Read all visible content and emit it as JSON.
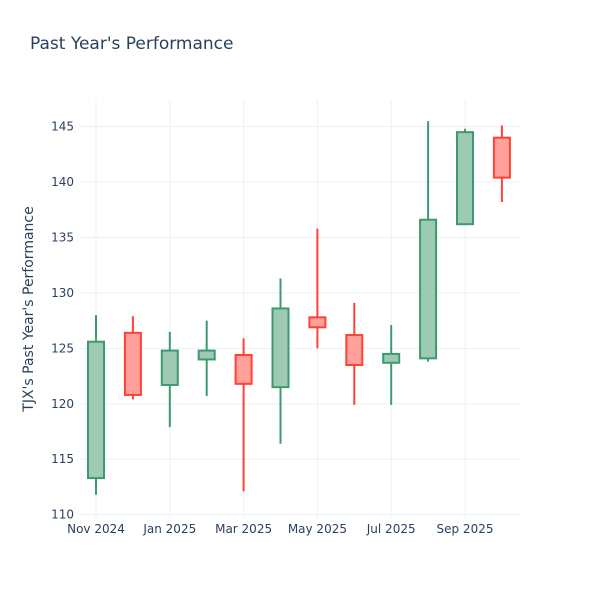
{
  "chart_data": {
    "type": "candlestick",
    "title": "Past Year's Performance",
    "xlabel": "",
    "ylabel": "TJX's Past Year's Performance",
    "ylim": [
      109.7,
      147.4
    ],
    "y_ticks": [
      110,
      115,
      120,
      125,
      130,
      135,
      140,
      145
    ],
    "x_ticks": [
      {
        "label": "Nov 2024",
        "month_index": 0
      },
      {
        "label": "Jan 2025",
        "month_index": 2
      },
      {
        "label": "Mar 2025",
        "month_index": 4
      },
      {
        "label": "May 2025",
        "month_index": 6
      },
      {
        "label": "Jul 2025",
        "month_index": 8
      },
      {
        "label": "Sep 2025",
        "month_index": 10
      }
    ],
    "grid": true,
    "colors": {
      "up": "#3d9970",
      "up_fill": "#9ecab4",
      "down": "#ff4136",
      "down_fill": "#ffa09b",
      "grid": "#ebf0f8",
      "text": "#2a3f5f"
    },
    "candles": [
      {
        "date": "2024-11",
        "open": 113.3,
        "high": 128.0,
        "low": 111.8,
        "close": 125.6
      },
      {
        "date": "2024-12",
        "open": 126.4,
        "high": 127.9,
        "low": 120.4,
        "close": 120.8
      },
      {
        "date": "2025-01",
        "open": 121.7,
        "high": 126.5,
        "low": 117.9,
        "close": 124.8
      },
      {
        "date": "2025-02",
        "open": 124.0,
        "high": 127.5,
        "low": 120.7,
        "close": 124.8
      },
      {
        "date": "2025-03",
        "open": 124.4,
        "high": 125.9,
        "low": 112.1,
        "close": 121.8
      },
      {
        "date": "2025-04",
        "open": 121.5,
        "high": 131.3,
        "low": 116.4,
        "close": 128.6
      },
      {
        "date": "2025-05",
        "open": 127.8,
        "high": 135.8,
        "low": 125.0,
        "close": 126.9
      },
      {
        "date": "2025-06",
        "open": 126.2,
        "high": 129.1,
        "low": 119.9,
        "close": 123.5
      },
      {
        "date": "2025-07",
        "open": 123.7,
        "high": 127.1,
        "low": 119.9,
        "close": 124.5
      },
      {
        "date": "2025-08",
        "open": 124.1,
        "high": 145.5,
        "low": 123.8,
        "close": 136.6
      },
      {
        "date": "2025-09",
        "open": 136.2,
        "high": 144.8,
        "low": 136.2,
        "close": 144.5
      },
      {
        "date": "2025-10",
        "open": 144.0,
        "high": 145.1,
        "low": 138.2,
        "close": 140.4
      }
    ]
  }
}
